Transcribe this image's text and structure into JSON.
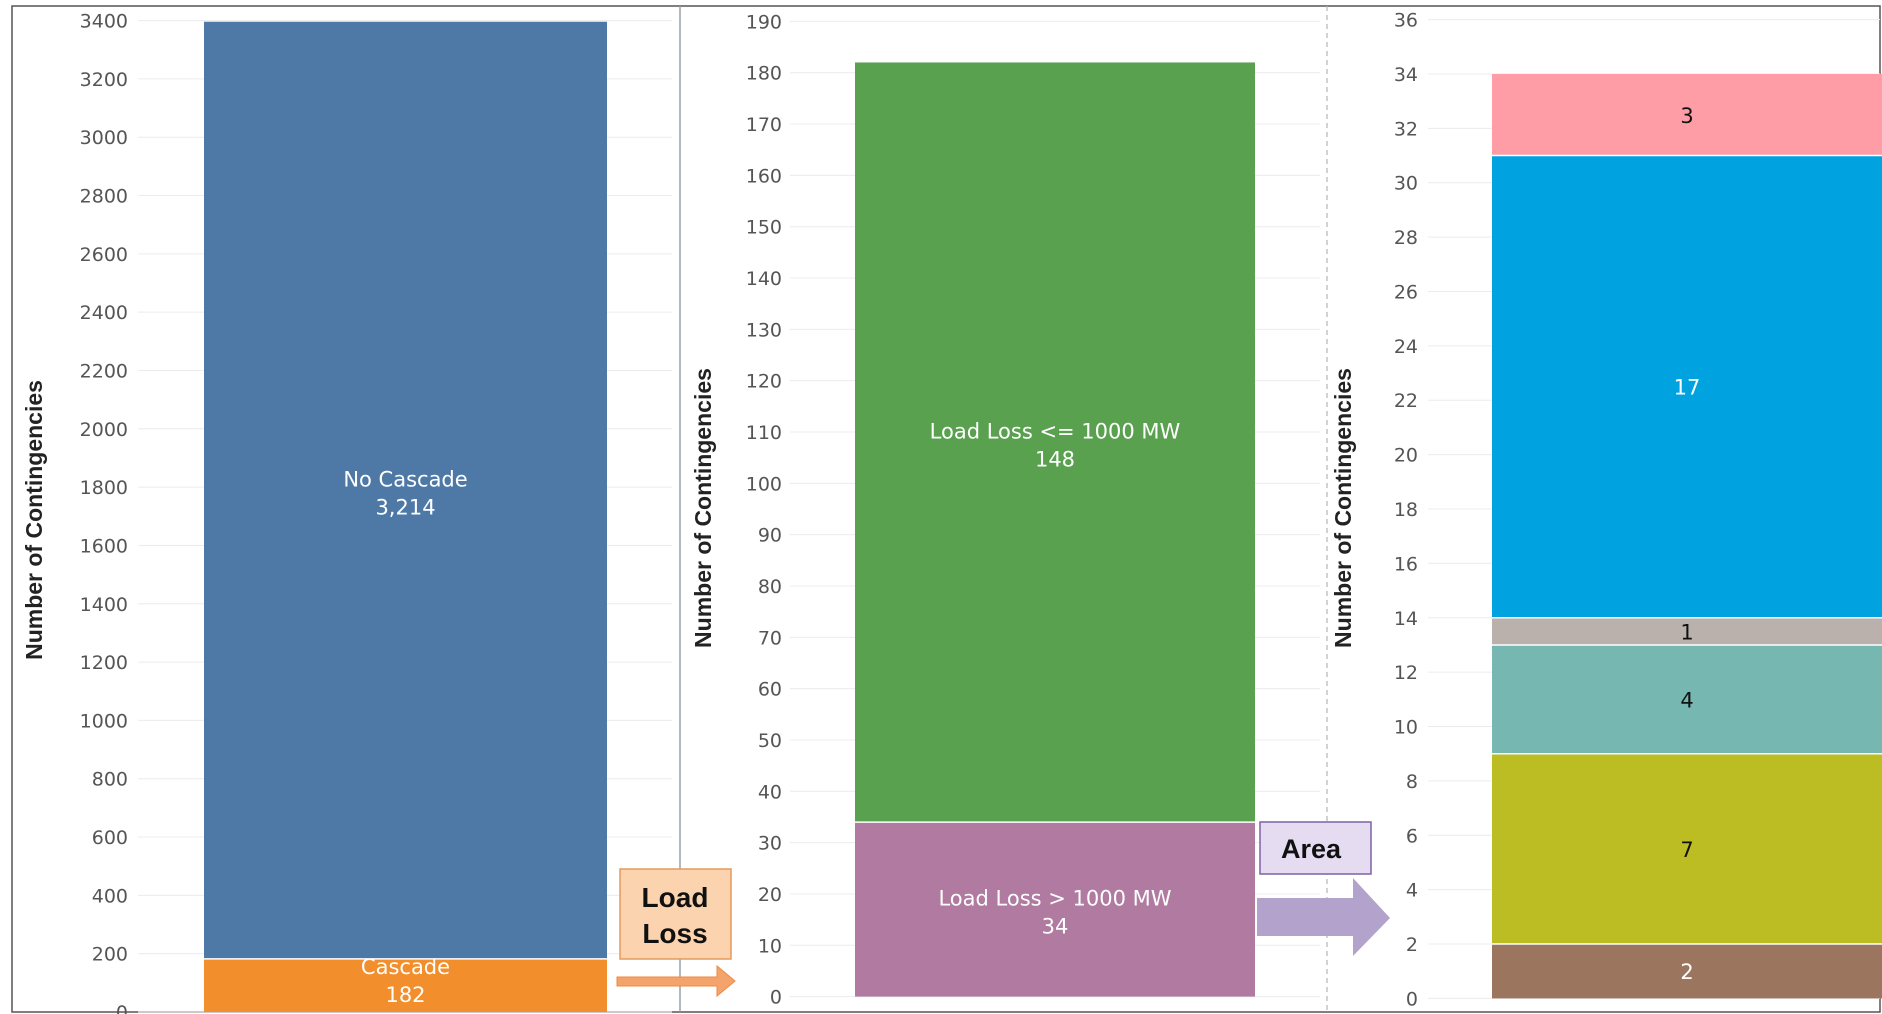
{
  "colors": {
    "no_cascade": "#4e79a7",
    "cascade": "#f28e2b",
    "load_loss_low": "#59a14f",
    "load_loss_high": "#b07aa1",
    "area_3": "#ff9da7",
    "area_17": "#00a2e0",
    "area_1": "#bab0ac",
    "area_4": "#76b7b2",
    "area_7": "#bcbd22",
    "area_2": "#9c755f"
  },
  "callouts": {
    "load_loss": [
      "Load",
      "Loss"
    ],
    "area": "Area"
  },
  "chart_data": [
    {
      "type": "bar",
      "stacked": true,
      "ylabel": "Number of Contingencies",
      "ylim": [
        0,
        3450
      ],
      "yticks": [
        0,
        200,
        400,
        600,
        800,
        1000,
        1200,
        1400,
        1600,
        1800,
        2000,
        2200,
        2400,
        2600,
        2800,
        3000,
        3200,
        3400
      ],
      "grid": true,
      "series": [
        {
          "name": "Cascade",
          "value": 182,
          "label": "182",
          "color_key": "cascade"
        },
        {
          "name": "No Cascade",
          "value": 3214,
          "label": "3,214",
          "color_key": "no_cascade"
        }
      ]
    },
    {
      "type": "bar",
      "stacked": true,
      "ylabel": "Number of Contingencies",
      "ylim": [
        -3,
        193
      ],
      "yticks": [
        0,
        10,
        20,
        30,
        40,
        50,
        60,
        70,
        80,
        90,
        100,
        110,
        120,
        130,
        140,
        150,
        160,
        170,
        180,
        190
      ],
      "grid": true,
      "series": [
        {
          "name": "Load Loss  > 1000 MW",
          "value": 34,
          "label": "34",
          "color_key": "load_loss_high"
        },
        {
          "name": "Load Loss <= 1000 MW",
          "value": 148,
          "label": "148",
          "color_key": "load_loss_low"
        }
      ]
    },
    {
      "type": "bar",
      "stacked": true,
      "ylabel": "Number of Contingencies",
      "ylim": [
        -0.5,
        36.5
      ],
      "yticks": [
        0,
        2,
        4,
        6,
        8,
        10,
        12,
        14,
        16,
        18,
        20,
        22,
        24,
        26,
        28,
        30,
        32,
        34,
        36
      ],
      "grid": true,
      "series": [
        {
          "value": 2,
          "label": "2",
          "color_key": "area_2",
          "text_color": "#ffffff"
        },
        {
          "value": 7,
          "label": "7",
          "color_key": "area_7",
          "text_color": "#111111"
        },
        {
          "value": 4,
          "label": "4",
          "color_key": "area_4",
          "text_color": "#111111"
        },
        {
          "value": 1,
          "label": "1",
          "color_key": "area_1",
          "text_color": "#111111"
        },
        {
          "value": 17,
          "label": "17",
          "color_key": "area_17",
          "text_color": "#ffffff"
        },
        {
          "value": 3,
          "label": "3",
          "color_key": "area_3",
          "text_color": "#111111"
        }
      ]
    }
  ]
}
